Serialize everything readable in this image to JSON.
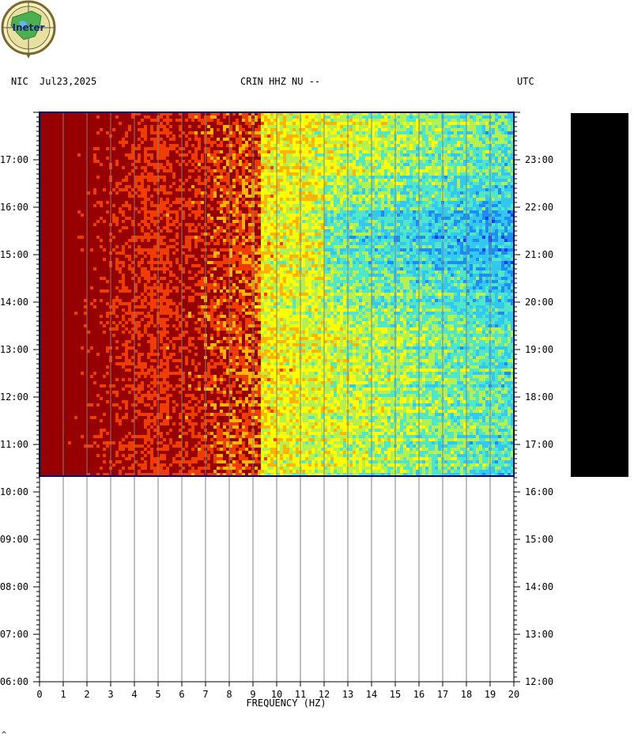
{
  "header": {
    "network": "NIC",
    "date": "Jul23,2025",
    "station": "CRIN HHZ NU --",
    "timezone": "UTC"
  },
  "logo": {
    "text": "Ineter",
    "icon": "ineter-logo-icon"
  },
  "colors": {
    "frame": "#000080",
    "background": "#ffffff",
    "gridline": "#808080",
    "blank_bar": "#000000",
    "palette": [
      "#0000c8",
      "#0a3cf0",
      "#1e8cf0",
      "#32c8f0",
      "#50e6c8",
      "#b4f050",
      "#ffff00",
      "#ffb400",
      "#f03c00",
      "#960000"
    ]
  },
  "footer": {
    "mark": "^"
  },
  "chart_data": {
    "type": "heatmap",
    "title": "",
    "xlabel": "FREQUENCY (HZ)",
    "ylabel": "",
    "xlim": [
      0,
      20
    ],
    "x_ticks": [
      "0",
      "1",
      "2",
      "3",
      "4",
      "5",
      "6",
      "7",
      "8",
      "9",
      "10",
      "11",
      "12",
      "13",
      "14",
      "15",
      "16",
      "17",
      "18",
      "19",
      "20"
    ],
    "y_left_ticks": [
      "06:00",
      "07:00",
      "08:00",
      "09:00",
      "10:00",
      "11:00",
      "12:00",
      "13:00",
      "14:00",
      "15:00",
      "16:00",
      "17:00"
    ],
    "y_right_ticks": [
      "12:00",
      "13:00",
      "14:00",
      "15:00",
      "16:00",
      "17:00",
      "18:00",
      "19:00",
      "20:00",
      "21:00",
      "22:00",
      "23:00"
    ],
    "y_range_local_hours": [
      6.0,
      18.0
    ],
    "data_start_local": "10:20",
    "data_end_local": "18:00",
    "grid": true,
    "color_scale": "blue (low power) to dark red (high power)",
    "trend": "Highest spectral power below ~9 Hz (dark red); power decreases with frequency; lowest power (deep blue) between 13 and 20 Hz from about 14:00 to 17:00 local time"
  }
}
